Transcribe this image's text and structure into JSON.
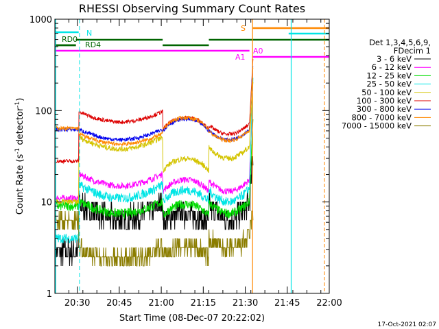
{
  "chart_data": {
    "type": "line",
    "title": "RHESSI Observing Summary Count Rates",
    "xlabel": "Start Time (08-Dec-07 20:22:02)",
    "ylabel_main": "Count Rate (s",
    "ylabel_sup1": "-1",
    "ylabel_mid": " detector",
    "ylabel_sup2": "-1",
    "ylabel_end": ")",
    "yscale": "log",
    "ylim": [
      1,
      1000
    ],
    "xlim_minutes": [
      0,
      98
    ],
    "x_tick_labels": [
      {
        "min": 8,
        "label": "20:30"
      },
      {
        "min": 23,
        "label": "20:45"
      },
      {
        "min": 38,
        "label": "21:00"
      },
      {
        "min": 53,
        "label": "21:15"
      },
      {
        "min": 68,
        "label": "21:30"
      },
      {
        "min": 83,
        "label": "21:45"
      },
      {
        "min": 98,
        "label": "22:00"
      }
    ],
    "y_tick_labels": [
      {
        "val": 1,
        "label": "1"
      },
      {
        "val": 10,
        "label": "10"
      },
      {
        "val": 100,
        "label": "100"
      },
      {
        "val": 1000,
        "label": "1000"
      }
    ],
    "legend_header": [
      "Det 1,3,4,5,6,9,",
      "FDecim 1"
    ],
    "series": [
      {
        "name": "3 - 6 keV",
        "color": "#000000"
      },
      {
        "name": "6 - 12 keV",
        "color": "#ff00ff"
      },
      {
        "name": "12 - 25 keV",
        "color": "#00dd00"
      },
      {
        "name": "25 - 50 keV",
        "color": "#00e5e5"
      },
      {
        "name": "50 - 100 keV",
        "color": "#d4c400"
      },
      {
        "name": "100 - 300 keV",
        "color": "#dd0000"
      },
      {
        "name": "300 - 800 keV",
        "color": "#0000ee"
      },
      {
        "name": "800 - 7000 keV",
        "color": "#ff8800"
      },
      {
        "name": "7000 - 15000 keV",
        "color": "#8b7d00"
      }
    ],
    "flag_bars": [
      {
        "label": "N",
        "color": "#00e5e5",
        "segments": [
          [
            0,
            8.5
          ],
          [
            83.5,
            98
          ]
        ]
      },
      {
        "label": "RD0",
        "color": "#006400",
        "segments": [
          [
            0,
            7.5
          ],
          [
            7.5,
            38.5
          ],
          [
            55,
            98
          ]
        ]
      },
      {
        "label": "RD4",
        "color": "#006400",
        "segments": [
          [
            0,
            7.5
          ],
          [
            38.5,
            55
          ]
        ]
      },
      {
        "label": "S",
        "color": "#ff8800",
        "segments": [
          [
            70.5,
            98
          ]
        ]
      },
      {
        "label": "A0",
        "color": "#ff00ff",
        "segments": [
          [
            70.5,
            98
          ]
        ]
      },
      {
        "label": "A1",
        "color": "#ff00ff",
        "segments": [
          [
            0,
            69.5
          ]
        ]
      }
    ],
    "timestamp": "17-Oct-2021 02:07"
  }
}
